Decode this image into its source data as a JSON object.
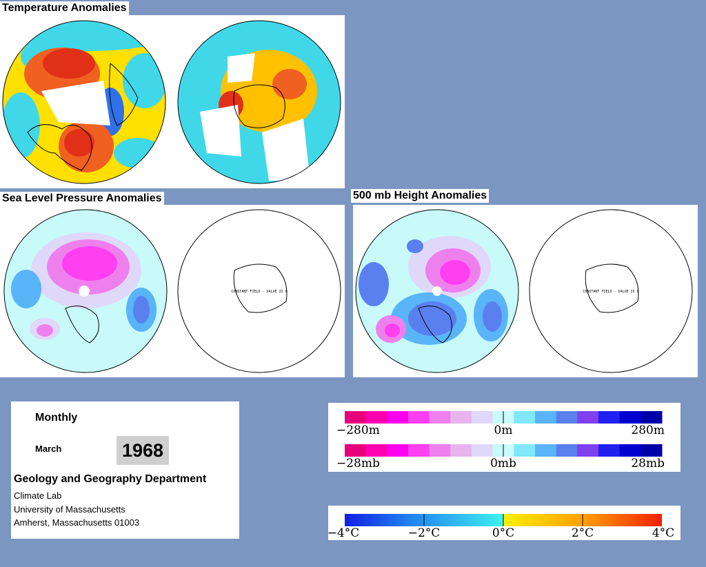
{
  "titles": {
    "temperature": "Temperature Anomalies",
    "slp": "Sea Level Pressure Anomalies",
    "height500": "500 mb Height Anomalies"
  },
  "maps": {
    "constant_field_label": "CONSTANT FIELD - VALUE IS 0"
  },
  "info": {
    "period": "Monthly",
    "month": "March",
    "year": "1968",
    "department": "Geology and Geography Department",
    "lab": "Climate Lab",
    "university": "University of Massachusetts",
    "address": "Amherst, Massachusetts 01003"
  },
  "legends": {
    "height": {
      "min": "−280m",
      "mid": "0m",
      "max": "280m",
      "colors": [
        "#e8007a",
        "#ff00b0",
        "#ff00ee",
        "#ff3ff0",
        "#ee80ee",
        "#e8b4ee",
        "#e0d8f8",
        "#c8fafa",
        "#80e8f8",
        "#5ab4f8",
        "#5a80f0",
        "#8040f0",
        "#2020f0",
        "#0000d0",
        "#0000a8"
      ]
    },
    "pressure": {
      "min": "−28mb",
      "mid": "0mb",
      "max": "28mb",
      "colors": [
        "#e8007a",
        "#ff00b0",
        "#ff00ee",
        "#ff3ff0",
        "#ee80ee",
        "#e8b4ee",
        "#e0d8f8",
        "#c8fafa",
        "#80e8f8",
        "#5ab4f8",
        "#5a80f0",
        "#8040f0",
        "#2020f0",
        "#0000d0",
        "#0000a8"
      ]
    },
    "temperature": {
      "labels": [
        "−4°C",
        "−2°C",
        "0°C",
        "2°C",
        "4°C"
      ]
    }
  }
}
